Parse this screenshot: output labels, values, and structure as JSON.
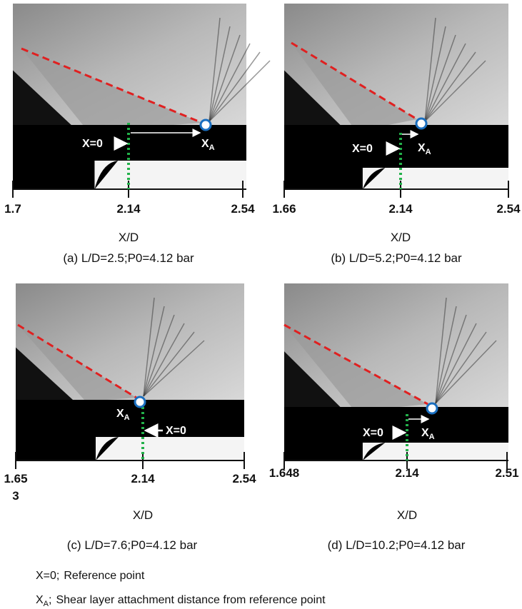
{
  "panels": [
    {
      "ticks": [
        [
          "1.7"
        ],
        [
          "2.14"
        ],
        [
          "2.54"
        ]
      ],
      "xlabel": "X/D",
      "caption": "(a) L/D=2.5;P0=4.12 bar",
      "ref_label": "X=0",
      "attach_label": {
        "main": "X",
        "sub": "A"
      }
    },
    {
      "ticks": [
        [
          "1.66"
        ],
        [
          "2.14"
        ],
        [
          "2.54"
        ]
      ],
      "xlabel": "X/D",
      "caption": "(b) L/D=5.2;P0=4.12 bar",
      "ref_label": "X=0",
      "attach_label": {
        "main": "X",
        "sub": "A"
      }
    },
    {
      "ticks": [
        [
          "1.65",
          "3"
        ],
        [
          "2.14"
        ],
        [
          "2.54"
        ]
      ],
      "xlabel": "X/D",
      "caption": "(c) L/D=7.6;P0=4.12 bar",
      "ref_label": "X=0",
      "attach_label": {
        "main": "X",
        "sub": "A"
      }
    },
    {
      "ticks": [
        [
          "1.648"
        ],
        [
          "2.14"
        ],
        [
          "2.51"
        ]
      ],
      "xlabel": "X/D",
      "caption": "(d) L/D=10.2;P0=4.12 bar",
      "ref_label": "X=0",
      "attach_label": {
        "main": "X",
        "sub": "A"
      }
    }
  ],
  "footnotes": [
    {
      "term": "X=0;",
      "text": "Reference point"
    },
    {
      "term_main": "X",
      "term_sub": "A",
      "sep": ";",
      "text": "Shear layer attachment distance from reference point"
    }
  ]
}
